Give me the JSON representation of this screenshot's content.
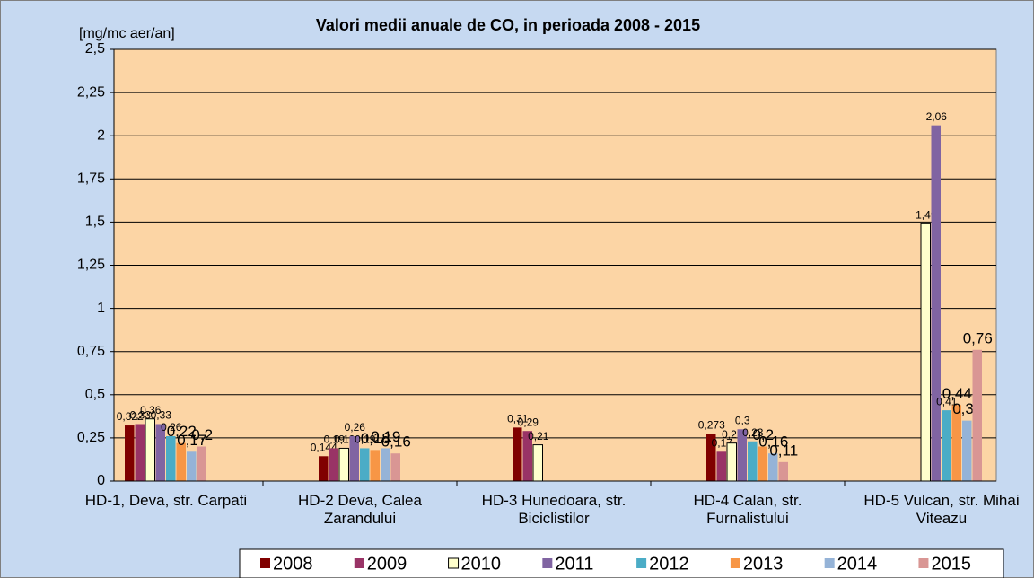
{
  "chart_data": {
    "type": "bar",
    "title": "Valori medii anuale de CO, in perioada 2008 - 2015",
    "y_label": "[mg/mc aer/an]",
    "categories": [
      "HD-1, Deva, str. Carpati",
      "HD-2 Deva, Calea Zarandului",
      "HD-3 Hunedoara, str. Biciclistilor",
      "HD-4 Calan, str. Furnalistului",
      "HD-5 Vulcan, str. Mihai Viteazu"
    ],
    "series": [
      {
        "name": "2008",
        "color": "#800000",
        "values": [
          0.322,
          0.144,
          0.31,
          0.273,
          null
        ],
        "value_labels": [
          "0,322",
          "0,144",
          "0,31",
          "0,273",
          null
        ]
      },
      {
        "name": "2009",
        "color": "#993366",
        "values": [
          0.33,
          0.19,
          0.29,
          0.17,
          null
        ],
        "value_labels": [
          "0,33",
          "0,19",
          "0,29",
          "0,17",
          null
        ]
      },
      {
        "name": "2010",
        "color": "#ffffcc",
        "values": [
          0.36,
          0.19,
          0.21,
          0.22,
          1.49
        ],
        "value_labels": [
          "0,36",
          "0,19",
          "0,21",
          "0,22",
          "1,49"
        ]
      },
      {
        "name": "2011",
        "color": "#8064a2",
        "values": [
          0.33,
          0.26,
          null,
          0.3,
          2.06
        ],
        "value_labels": [
          "0,33",
          "0,26",
          null,
          "0,3",
          "2,06"
        ]
      },
      {
        "name": "2012",
        "color": "#4bacc6",
        "values": [
          0.26,
          0.19,
          null,
          0.23,
          0.41
        ],
        "value_labels": [
          "0,26",
          "0,19",
          null,
          "0,23",
          "0,41"
        ]
      },
      {
        "name": "2013",
        "color": "#f79646",
        "values": [
          0.22,
          0.18,
          null,
          0.2,
          0.44
        ],
        "value_labels": [
          "0,22",
          "0,18",
          null,
          "0,2",
          "0,44"
        ]
      },
      {
        "name": "2014",
        "color": "#95b3d7",
        "values": [
          0.17,
          0.19,
          null,
          0.16,
          0.35
        ],
        "value_labels": [
          "0,17",
          "0,19",
          null,
          "0,16",
          "0,35"
        ]
      },
      {
        "name": "2015",
        "color": "#d99694",
        "values": [
          0.2,
          0.16,
          null,
          0.11,
          0.76
        ],
        "value_labels": [
          "0,2",
          "0,16",
          null,
          "0,11",
          "0,76"
        ]
      }
    ],
    "ylim": [
      0,
      2.5
    ],
    "yticks": [
      0,
      {
        "value": 0.25,
        "label": "0,25"
      },
      {
        "value": 0.5,
        "label": "0,5"
      },
      {
        "value": 0.75,
        "label": "0,75"
      },
      1,
      {
        "value": 1.25,
        "label": "1,25"
      },
      {
        "value": 1.5,
        "label": "1,5"
      },
      {
        "value": 1.75,
        "label": "1,75"
      },
      2,
      {
        "value": 2.25,
        "label": "2,25"
      },
      {
        "value": 2.5,
        "label": "2,5"
      }
    ],
    "grid": true,
    "legend": "bottom"
  }
}
